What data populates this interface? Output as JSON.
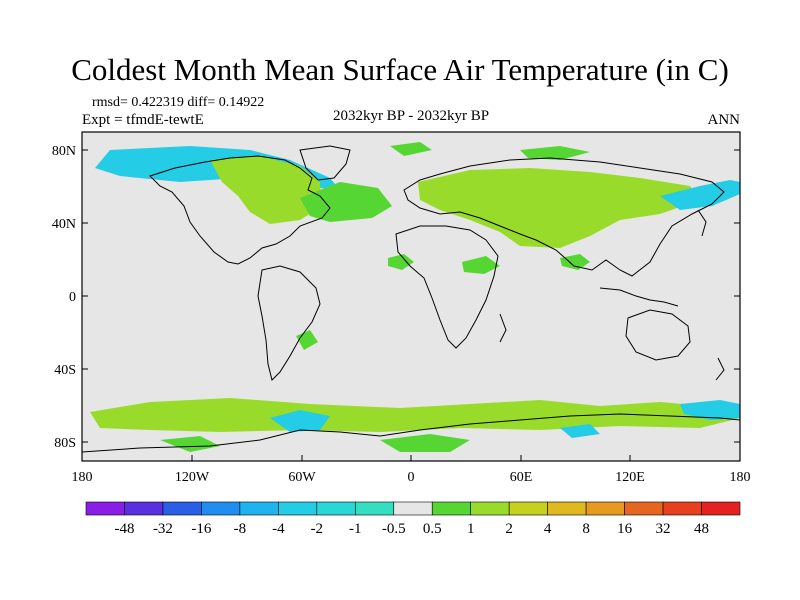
{
  "title": "Coldest Month Mean Surface Air Temperature (in C)",
  "stats_line": "rmsd= 0.422319  diff= 0.14922",
  "expt_line": "Expt = tfmdE-tewtE",
  "center_label": "2032kyr BP - 2032kyr BP",
  "season_label": "ANN",
  "lat_ticks": [
    "80N",
    "40N",
    "0",
    "40S",
    "80S"
  ],
  "lon_ticks": [
    "180",
    "120W",
    "60W",
    "0",
    "60E",
    "120E",
    "180"
  ],
  "colorbar": {
    "labels": [
      "-48",
      "-32",
      "-16",
      "-8",
      "-4",
      "-2",
      "-1",
      "-0.5",
      "0.5",
      "1",
      "2",
      "4",
      "8",
      "16",
      "32",
      "48"
    ],
    "colors": [
      "#8a1de6",
      "#5a2fe0",
      "#2a5ee6",
      "#1f8ef0",
      "#1fb4f0",
      "#24cce6",
      "#2ad6d6",
      "#33dfc0",
      "#e6e6e6",
      "#55d633",
      "#99db2a",
      "#c6d11f",
      "#e0b81f",
      "#e69a1f",
      "#e6661f",
      "#e6401f",
      "#e61f1f"
    ]
  },
  "map": {
    "background_color": "#e6e6e6",
    "anomaly_regions": [
      {
        "region": "north-america-arctic",
        "color": "#24cce6"
      },
      {
        "region": "north-america-interior",
        "color": "#99db2a"
      },
      {
        "region": "north-atlantic",
        "color": "#55d633"
      },
      {
        "region": "eurasia",
        "color": "#99db2a"
      },
      {
        "region": "southern-ocean",
        "color": "#99db2a"
      },
      {
        "region": "antarctic-coast",
        "color": "#24cce6"
      }
    ]
  }
}
